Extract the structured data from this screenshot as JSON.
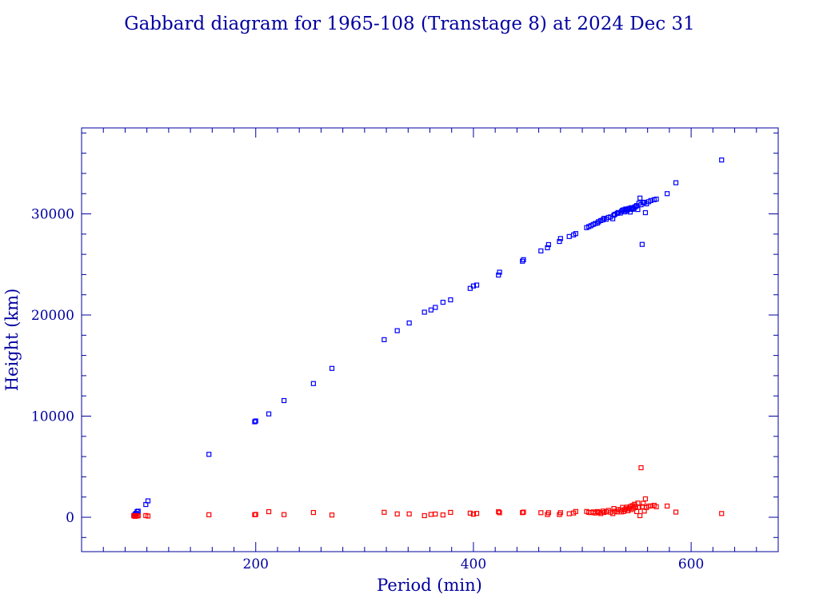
{
  "chart_data": {
    "type": "scatter",
    "title": "Gabbard diagram for 1965-108 (Transtage 8) at 2024 Dec 31",
    "xlabel": "Period (min)",
    "ylabel": "Height (km)",
    "xlim": [
      40,
      680
    ],
    "ylim": [
      -3400,
      38500
    ],
    "x_ticks": [
      200,
      400,
      600
    ],
    "y_ticks": [
      0,
      10000,
      20000,
      30000
    ],
    "x_tick_labels": [
      "200",
      "400",
      "600"
    ],
    "y_tick_labels": [
      "0",
      "10000",
      "20000",
      "30000"
    ],
    "grid": false,
    "legend": "none",
    "colors": {
      "axis": "#0000a0",
      "text": "#0000a0",
      "apogee": "#0000ff",
      "perigee": "#ff0000"
    },
    "series": [
      {
        "key": "apogee",
        "points": [
          [
            88,
            160
          ],
          [
            89,
            280
          ],
          [
            90,
            380
          ],
          [
            91,
            560
          ],
          [
            92,
            600
          ],
          [
            99,
            1260
          ],
          [
            101,
            1620
          ],
          [
            157,
            6220
          ],
          [
            199,
            9440
          ],
          [
            200,
            9520
          ],
          [
            212,
            10220
          ],
          [
            226,
            11540
          ],
          [
            253,
            13220
          ],
          [
            270,
            14720
          ],
          [
            318,
            17560
          ],
          [
            330,
            18450
          ],
          [
            341,
            19210
          ],
          [
            355,
            20280
          ],
          [
            361,
            20500
          ],
          [
            365,
            20750
          ],
          [
            372,
            21260
          ],
          [
            379,
            21500
          ],
          [
            397,
            22630
          ],
          [
            400,
            22870
          ],
          [
            403,
            22960
          ],
          [
            423,
            23950
          ],
          [
            424,
            24230
          ],
          [
            445,
            25320
          ],
          [
            446,
            25470
          ],
          [
            462,
            26340
          ],
          [
            468,
            26650
          ],
          [
            469,
            26960
          ],
          [
            479,
            27270
          ],
          [
            480,
            27560
          ],
          [
            488,
            27760
          ],
          [
            492,
            27920
          ],
          [
            494,
            28050
          ],
          [
            504,
            28640
          ],
          [
            506,
            28740
          ],
          [
            508,
            28830
          ],
          [
            510,
            28950
          ],
          [
            512,
            29050
          ],
          [
            514,
            29100
          ],
          [
            515,
            29230
          ],
          [
            517,
            29340
          ],
          [
            519,
            29410
          ],
          [
            520,
            29560
          ],
          [
            522,
            29470
          ],
          [
            524,
            29650
          ],
          [
            526,
            29700
          ],
          [
            528,
            29520
          ],
          [
            529,
            29870
          ],
          [
            530,
            29960
          ],
          [
            532,
            30050
          ],
          [
            533,
            30130
          ],
          [
            535,
            30080
          ],
          [
            536,
            30240
          ],
          [
            537,
            30350
          ],
          [
            538,
            30400
          ],
          [
            539,
            30200
          ],
          [
            540,
            30480
          ],
          [
            541,
            30320
          ],
          [
            542,
            30420
          ],
          [
            543,
            30540
          ],
          [
            544,
            30180
          ],
          [
            545,
            30610
          ],
          [
            546,
            30450
          ],
          [
            547,
            30510
          ],
          [
            548,
            30650
          ],
          [
            549,
            30720
          ],
          [
            550,
            30820
          ],
          [
            551,
            30430
          ],
          [
            552,
            31050
          ],
          [
            553,
            31560
          ],
          [
            554,
            30900
          ],
          [
            555,
            26980
          ],
          [
            556,
            31100
          ],
          [
            557,
            31150
          ],
          [
            558,
            30120
          ],
          [
            559,
            30990
          ],
          [
            561,
            31200
          ],
          [
            563,
            31320
          ],
          [
            566,
            31400
          ],
          [
            568,
            31460
          ],
          [
            578,
            32000
          ],
          [
            586,
            33080
          ],
          [
            628,
            35330
          ]
        ]
      },
      {
        "key": "perigee",
        "points": [
          [
            88,
            160
          ],
          [
            89,
            90
          ],
          [
            90,
            120
          ],
          [
            91,
            130
          ],
          [
            92,
            150
          ],
          [
            99,
            170
          ],
          [
            101,
            120
          ],
          [
            157,
            250
          ],
          [
            199,
            250
          ],
          [
            200,
            280
          ],
          [
            212,
            550
          ],
          [
            226,
            260
          ],
          [
            253,
            470
          ],
          [
            270,
            220
          ],
          [
            318,
            490
          ],
          [
            330,
            330
          ],
          [
            341,
            330
          ],
          [
            355,
            160
          ],
          [
            361,
            280
          ],
          [
            365,
            320
          ],
          [
            372,
            230
          ],
          [
            379,
            480
          ],
          [
            397,
            410
          ],
          [
            400,
            300
          ],
          [
            403,
            380
          ],
          [
            423,
            550
          ],
          [
            424,
            450
          ],
          [
            445,
            460
          ],
          [
            446,
            510
          ],
          [
            462,
            450
          ],
          [
            468,
            270
          ],
          [
            469,
            450
          ],
          [
            479,
            270
          ],
          [
            480,
            450
          ],
          [
            488,
            350
          ],
          [
            492,
            420
          ],
          [
            494,
            570
          ],
          [
            504,
            570
          ],
          [
            506,
            480
          ],
          [
            508,
            460
          ],
          [
            510,
            530
          ],
          [
            512,
            420
          ],
          [
            514,
            560
          ],
          [
            515,
            480
          ],
          [
            517,
            370
          ],
          [
            519,
            610
          ],
          [
            520,
            470
          ],
          [
            522,
            540
          ],
          [
            524,
            680
          ],
          [
            526,
            500
          ],
          [
            528,
            360
          ],
          [
            529,
            860
          ],
          [
            530,
            590
          ],
          [
            532,
            530
          ],
          [
            533,
            760
          ],
          [
            535,
            710
          ],
          [
            536,
            530
          ],
          [
            537,
            980
          ],
          [
            538,
            560
          ],
          [
            539,
            750
          ],
          [
            540,
            830
          ],
          [
            541,
            1000
          ],
          [
            542,
            650
          ],
          [
            543,
            880
          ],
          [
            544,
            1050
          ],
          [
            545,
            760
          ],
          [
            546,
            1150
          ],
          [
            547,
            910
          ],
          [
            548,
            1280
          ],
          [
            549,
            1050
          ],
          [
            550,
            560
          ],
          [
            551,
            1400
          ],
          [
            552,
            970
          ],
          [
            553,
            160
          ],
          [
            554,
            4900
          ],
          [
            555,
            1050
          ],
          [
            556,
            1380
          ],
          [
            557,
            610
          ],
          [
            558,
            1820
          ],
          [
            559,
            960
          ],
          [
            561,
            1100
          ],
          [
            563,
            1120
          ],
          [
            566,
            1180
          ],
          [
            568,
            1040
          ],
          [
            578,
            1110
          ],
          [
            586,
            510
          ],
          [
            628,
            370
          ]
        ]
      }
    ]
  }
}
